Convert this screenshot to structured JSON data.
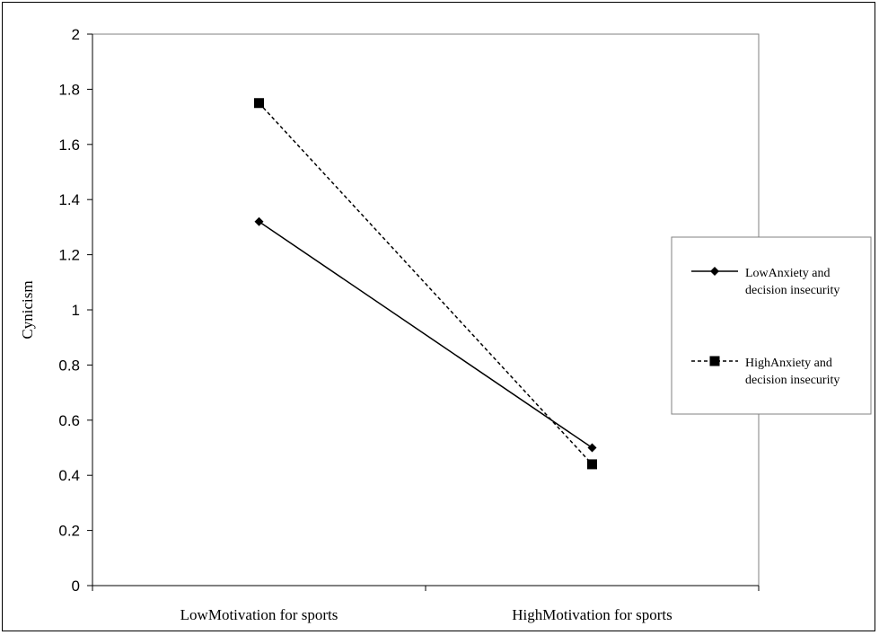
{
  "chart_data": {
    "type": "line",
    "title": "",
    "xlabel": "",
    "ylabel": "Cynicism",
    "ylim": [
      0,
      2
    ],
    "yticks": [
      "0",
      "0.2",
      "0.4",
      "0.6",
      "0.8",
      "1",
      "1.2",
      "1.4",
      "1.6",
      "1.8",
      "2"
    ],
    "categories": [
      "LowMotivation for sports",
      "HighMotivation for sports"
    ],
    "legend_position": "right",
    "grid": false,
    "series": [
      {
        "name_lines": [
          "LowAnxiety and",
          "decision insecurity"
        ],
        "values": [
          1.32,
          0.5
        ],
        "marker": "diamond",
        "dash": "solid",
        "color": "#000000"
      },
      {
        "name_lines": [
          "HighAnxiety and",
          "decision insecurity"
        ],
        "values": [
          1.75,
          0.44
        ],
        "marker": "square",
        "dash": "dashed",
        "color": "#000000"
      }
    ]
  }
}
